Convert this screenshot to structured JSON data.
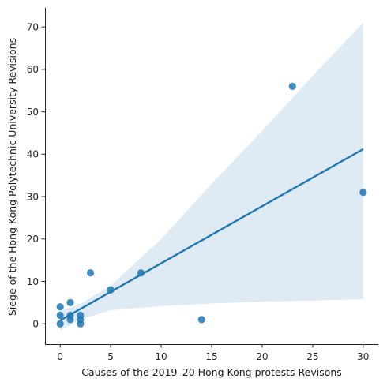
{
  "chart_data": {
    "type": "scatter",
    "xlabel": "Causes of the 2019–20 Hong Kong protests Revisons",
    "ylabel": "Siege of the Hong Kong Polytechnic University Revisions",
    "xlim": [
      -1.5,
      31.5
    ],
    "ylim": [
      -4.8,
      74.5
    ],
    "xticks": [
      0,
      5,
      10,
      15,
      20,
      25,
      30
    ],
    "yticks": [
      0,
      10,
      20,
      30,
      40,
      50,
      60,
      70
    ],
    "grid": false,
    "colors": {
      "points": "#1f77b4",
      "line": "#1f77b4",
      "band": "#1f77b4"
    },
    "points": [
      {
        "x": 0,
        "y": 4
      },
      {
        "x": 0,
        "y": 2
      },
      {
        "x": 0,
        "y": 0
      },
      {
        "x": 1,
        "y": 5
      },
      {
        "x": 1,
        "y": 2
      },
      {
        "x": 1,
        "y": 1
      },
      {
        "x": 2,
        "y": 2
      },
      {
        "x": 2,
        "y": 1
      },
      {
        "x": 2,
        "y": 0
      },
      {
        "x": 3,
        "y": 12
      },
      {
        "x": 5,
        "y": 8
      },
      {
        "x": 8,
        "y": 12
      },
      {
        "x": 14,
        "y": 1
      },
      {
        "x": 23,
        "y": 56
      },
      {
        "x": 30,
        "y": 31
      }
    ],
    "regression": {
      "line": [
        {
          "x": 0,
          "y": 0.8
        },
        {
          "x": 30,
          "y": 41.2
        }
      ],
      "ci_upper": [
        {
          "x": 0,
          "y": 3.0
        },
        {
          "x": 2,
          "y": 4.7
        },
        {
          "x": 5,
          "y": 9.0
        },
        {
          "x": 10,
          "y": 20.0
        },
        {
          "x": 15,
          "y": 33.0
        },
        {
          "x": 20,
          "y": 45.5
        },
        {
          "x": 25,
          "y": 58.5
        },
        {
          "x": 30,
          "y": 71.0
        }
      ],
      "ci_lower": [
        {
          "x": 0,
          "y": -1.6
        },
        {
          "x": 2,
          "y": 1.0
        },
        {
          "x": 5,
          "y": 3.2
        },
        {
          "x": 10,
          "y": 4.2
        },
        {
          "x": 15,
          "y": 4.8
        },
        {
          "x": 20,
          "y": 5.2
        },
        {
          "x": 25,
          "y": 5.5
        },
        {
          "x": 30,
          "y": 5.8
        }
      ]
    }
  }
}
